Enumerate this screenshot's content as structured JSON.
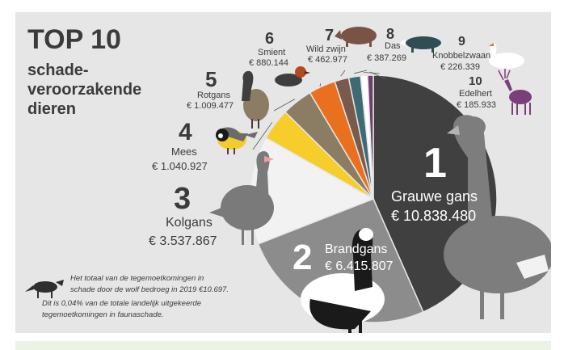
{
  "title": {
    "line1": "TOP 10",
    "line2": "schade-",
    "line3": "veroorzakende",
    "line4": "dieren"
  },
  "note": {
    "line1": "Het totaal van de tegemoetkomingen in",
    "line2": "schade door de wolf bedroeg in 2019 €10.697.",
    "line3": "Dit is 0,04% van de totale landelijk uitgekeerde",
    "line4": "tegemoetkomingen in faunaschade."
  },
  "chart_data": {
    "type": "pie",
    "slices": [
      {
        "rank": "1",
        "name": "Grauwe gans",
        "value_label": "€ 10.838.480",
        "value": 10838480,
        "color": "#404040"
      },
      {
        "rank": "2",
        "name": "Brandgans",
        "value_label": "€ 6.415.807",
        "value": 6415807,
        "color": "#8c8c8c"
      },
      {
        "rank": "3",
        "name": "Kolgans",
        "value_label": "€ 3.537.867",
        "value": 3537867,
        "color": "#f2f2f2"
      },
      {
        "rank": "4",
        "name": "Mees",
        "value_label": "€ 1.040.927",
        "value": 1040927,
        "color": "#f7cd2b"
      },
      {
        "rank": "5",
        "name": "Rotgans",
        "value_label": "€ 1.009.477",
        "value": 1009477,
        "color": "#8a7d63"
      },
      {
        "rank": "6",
        "name": "Smient",
        "value_label": "€ 880.144",
        "value": 880144,
        "color": "#e8701f"
      },
      {
        "rank": "7",
        "name": "Wild zwijn",
        "value_label": "€ 462.977",
        "value": 462977,
        "color": "#7a5a4a"
      },
      {
        "rank": "8",
        "name": "Das",
        "value_label": "€ 387.269",
        "value": 387269,
        "color": "#3e6b73"
      },
      {
        "rank": "9",
        "name": "Knobbelzwaan",
        "value_label": "€ 226.339",
        "value": 226339,
        "color": "#ffffff"
      },
      {
        "rank": "10",
        "name": "Edelhert",
        "value_label": "€ 185.933",
        "value": 185933,
        "color": "#6e3f6e"
      }
    ]
  }
}
